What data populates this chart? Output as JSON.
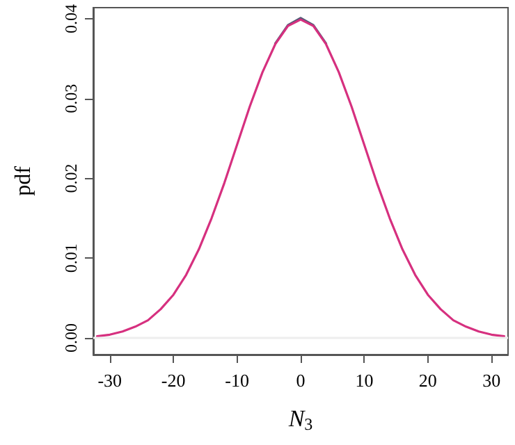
{
  "chart_data": {
    "type": "line",
    "xlabel": "N$_{3}$",
    "ylabel": "pdf",
    "x": [
      -32,
      -30,
      -28,
      -26,
      -24,
      -22,
      -20,
      -18,
      -16,
      -14,
      -12,
      -10,
      -8,
      -6,
      -4,
      -2,
      0,
      2,
      4,
      6,
      8,
      10,
      12,
      14,
      16,
      18,
      20,
      22,
      24,
      26,
      28,
      30,
      32
    ],
    "series": [
      {
        "color": "#555a77",
        "values": [
          null,
          null,
          null,
          null,
          null,
          null,
          null,
          null,
          null,
          null,
          null,
          null,
          null,
          null,
          0.0369,
          0.0392,
          0.0401,
          0.0392,
          0.0369,
          null,
          null,
          null,
          null,
          null,
          null,
          null,
          null,
          null,
          null,
          null,
          null,
          null,
          null
        ]
      },
      {
        "color": "#d6307f",
        "values": [
          0.0002,
          0.0004,
          0.0008,
          0.0014,
          0.0022,
          0.0036,
          0.0054,
          0.0079,
          0.0111,
          0.015,
          0.0194,
          0.0242,
          0.029,
          0.0333,
          0.0368,
          0.0391,
          0.0399,
          0.0391,
          0.0368,
          0.0333,
          0.029,
          0.0242,
          0.0194,
          0.015,
          0.0111,
          0.0079,
          0.0054,
          0.0036,
          0.0022,
          0.0014,
          0.0008,
          0.0004,
          0.0002
        ]
      }
    ],
    "xlim": [
      -32.6,
      32.6
    ],
    "xticks": [
      -30,
      -20,
      -10,
      0,
      10,
      20,
      30
    ],
    "ylim": [
      -0.0021,
      0.0414
    ],
    "yticks": [
      {
        "value": 0,
        "label": "0.00"
      },
      {
        "value": 0.01,
        "label": "0.01"
      },
      {
        "value": 0.02,
        "label": "0.02"
      },
      {
        "value": 0.03,
        "label": "0.03"
      },
      {
        "value": 0.04,
        "label": "0.04"
      }
    ],
    "ref_lines": [
      {
        "axis": "y",
        "value": 0,
        "color": "#eeeeee"
      }
    ],
    "grid": false,
    "marker": "none",
    "line_style": "solid"
  }
}
